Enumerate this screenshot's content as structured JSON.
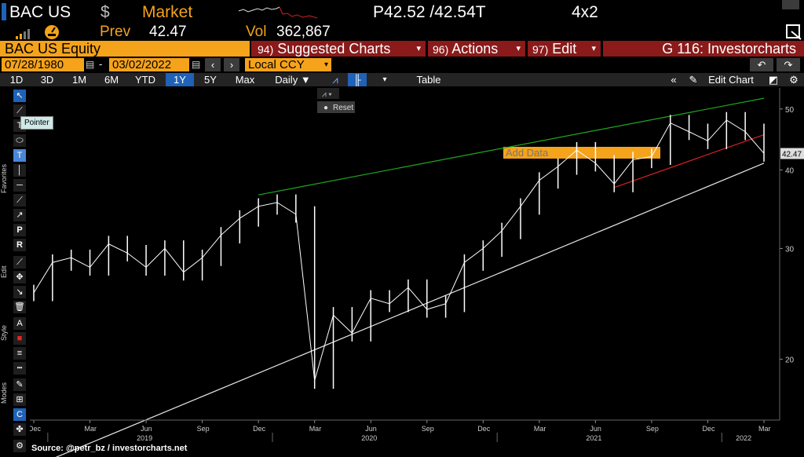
{
  "header": {
    "ticker": "BAC US",
    "currency_symbol": "$",
    "market_label": "Market",
    "price": "P42.52 /42.54T",
    "size": "4x2",
    "prev_label": "Prev",
    "prev_value": "42.47",
    "vol_label": "Vol",
    "vol_value": "362,867"
  },
  "bar": {
    "security": "BAC US Equity",
    "suggested_num": "94)",
    "suggested_label": "Suggested Charts",
    "actions_num": "96)",
    "actions_label": "Actions",
    "edit_num": "97)",
    "edit_label": "Edit",
    "function_label": "G 116: Investorcharts"
  },
  "dates": {
    "start": "07/28/1980",
    "end": "03/02/2022",
    "currency": "Local CCY"
  },
  "toolbar": {
    "periods": [
      "1D",
      "3D",
      "1M",
      "6M",
      "YTD",
      "1Y",
      "5Y",
      "Max"
    ],
    "active_period": "1Y",
    "frequency": "Daily",
    "table_label": "Table",
    "add_data_placeholder": "Add Data",
    "edit_chart_label": "Edit Chart"
  },
  "tools": {
    "tooltip": "Pointer",
    "reset_label": "Reset",
    "favorites_label": "Favorites",
    "edit_label": "Edit",
    "style_label": "Style",
    "modes_label": "Modes"
  },
  "source": "Source: @petr_bz / investorcharts.net",
  "chart_data": {
    "type": "line",
    "scale": "log",
    "ylim": [
      16,
      54
    ],
    "y_ticks": [
      20,
      30,
      40,
      50
    ],
    "last_value": "42.47",
    "x_ticks": [
      "Dec",
      "Mar",
      "Jun",
      "Sep",
      "Dec",
      "Mar",
      "Jun",
      "Sep",
      "Dec",
      "Mar",
      "Jun",
      "Sep",
      "Dec",
      "Mar"
    ],
    "years": [
      "2019",
      "2020",
      "2021",
      "2022"
    ],
    "series": [
      {
        "values": [
          [
            "2018-12",
            25.5
          ],
          [
            "2019-01",
            28.5
          ],
          [
            "2019-02",
            29.0
          ],
          [
            "2019-03",
            28.0
          ],
          [
            "2019-04",
            30.5
          ],
          [
            "2019-05",
            29.5
          ],
          [
            "2019-06",
            28.0
          ],
          [
            "2019-07",
            30.0
          ],
          [
            "2019-08",
            27.5
          ],
          [
            "2019-09",
            29.0
          ],
          [
            "2019-10",
            31.5
          ],
          [
            "2019-11",
            33.5
          ],
          [
            "2019-12",
            35.0
          ],
          [
            "2020-01",
            35.5
          ],
          [
            "2020-02",
            34.0
          ],
          [
            "2020-03",
            18.5
          ],
          [
            "2020-04",
            23.5
          ],
          [
            "2020-05",
            22.0
          ],
          [
            "2020-06",
            25.0
          ],
          [
            "2020-07",
            24.5
          ],
          [
            "2020-08",
            26.0
          ],
          [
            "2020-09",
            24.0
          ],
          [
            "2020-10",
            24.5
          ],
          [
            "2020-11",
            28.5
          ],
          [
            "2020-12",
            30.0
          ],
          [
            "2021-01",
            32.0
          ],
          [
            "2021-02",
            35.0
          ],
          [
            "2021-03",
            38.5
          ],
          [
            "2021-04",
            40.5
          ],
          [
            "2021-05",
            43.0
          ],
          [
            "2021-06",
            41.0
          ],
          [
            "2021-07",
            38.0
          ],
          [
            "2021-08",
            41.5
          ],
          [
            "2021-09",
            42.0
          ],
          [
            "2021-10",
            47.5
          ],
          [
            "2021-11",
            46.0
          ],
          [
            "2021-12",
            44.5
          ],
          [
            "2022-01",
            48.0
          ],
          [
            "2022-02",
            46.0
          ],
          [
            "2022-03",
            42.5
          ]
        ]
      }
    ],
    "trendlines": [
      {
        "color": "#1fa81f",
        "from": [
          "2019-12",
          36.5
        ],
        "to": [
          "2022-03",
          52.0
        ]
      },
      {
        "color": "#d22222",
        "from": [
          "2021-07",
          37.5
        ],
        "to": [
          "2022-03",
          45.5
        ]
      },
      {
        "color": "#e6e6e6",
        "from": [
          "2018-12",
          13.5
        ],
        "to": [
          "2022-03",
          41.0
        ]
      }
    ]
  },
  "colors": {
    "orange": "#f5a31a",
    "red_tab": "#8b1a1a",
    "active_blue": "#1f62b8",
    "green_line": "#1fa81f",
    "red_line": "#d22222"
  }
}
